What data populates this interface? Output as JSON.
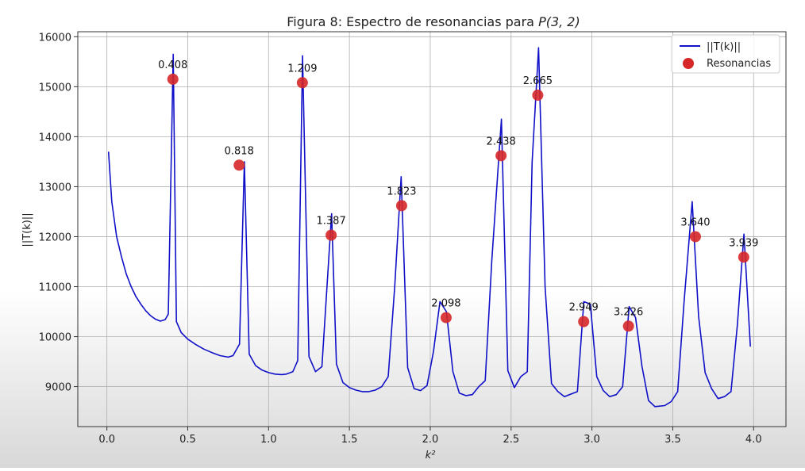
{
  "chart_data": {
    "type": "line",
    "title_prefix": "Figura 8: Espectro de resonancias para ",
    "title_math": "P(3, 2)",
    "xlabel": "k²",
    "ylabel": "||T(k)||",
    "xlim": [
      -0.18,
      4.2
    ],
    "ylim": [
      8200,
      16100
    ],
    "xticks": [
      "0.0",
      "0.5",
      "1.0",
      "1.5",
      "2.0",
      "2.5",
      "3.0",
      "3.5",
      "4.0"
    ],
    "yticks": [
      "9000",
      "10000",
      "11000",
      "12000",
      "13000",
      "14000",
      "15000",
      "16000"
    ],
    "grid": true,
    "legend_position": "top-right",
    "line_color": "#1010c8",
    "marker_color": "#d62728",
    "series": [
      {
        "name": "||T(k)||",
        "kind": "line",
        "x": [
          0.01,
          0.03,
          0.06,
          0.09,
          0.12,
          0.15,
          0.18,
          0.21,
          0.24,
          0.27,
          0.3,
          0.33,
          0.36,
          0.38,
          0.41,
          0.43,
          0.46,
          0.5,
          0.55,
          0.6,
          0.65,
          0.7,
          0.75,
          0.78,
          0.82,
          0.85,
          0.88,
          0.92,
          0.96,
          1.0,
          1.04,
          1.08,
          1.11,
          1.15,
          1.18,
          1.21,
          1.25,
          1.29,
          1.33,
          1.39,
          1.42,
          1.46,
          1.5,
          1.54,
          1.58,
          1.62,
          1.66,
          1.7,
          1.74,
          1.78,
          1.82,
          1.86,
          1.9,
          1.94,
          1.98,
          2.02,
          2.06,
          2.1,
          2.14,
          2.18,
          2.22,
          2.26,
          2.3,
          2.34,
          2.38,
          2.44,
          2.48,
          2.52,
          2.56,
          2.6,
          2.63,
          2.67,
          2.71,
          2.75,
          2.79,
          2.83,
          2.87,
          2.91,
          2.95,
          2.99,
          3.03,
          3.07,
          3.11,
          3.15,
          3.19,
          3.23,
          3.27,
          3.31,
          3.35,
          3.39,
          3.45,
          3.49,
          3.53,
          3.57,
          3.62,
          3.66,
          3.7,
          3.74,
          3.78,
          3.82,
          3.86,
          3.9,
          3.94,
          3.98
        ],
        "y": [
          13700,
          12700,
          12000,
          11600,
          11250,
          11000,
          10800,
          10650,
          10520,
          10420,
          10350,
          10310,
          10340,
          10450,
          15650,
          10300,
          10080,
          9950,
          9840,
          9750,
          9680,
          9620,
          9590,
          9620,
          9850,
          13500,
          9650,
          9420,
          9330,
          9280,
          9250,
          9240,
          9250,
          9300,
          9520,
          15620,
          9600,
          9300,
          9400,
          12460,
          9450,
          9080,
          8980,
          8930,
          8900,
          8900,
          8930,
          9000,
          9200,
          11000,
          13200,
          9380,
          8960,
          8920,
          9020,
          9700,
          10700,
          10500,
          9300,
          8870,
          8820,
          8840,
          9000,
          9120,
          11500,
          14350,
          9320,
          8980,
          9200,
          9300,
          13500,
          15780,
          11000,
          9060,
          8900,
          8800,
          8850,
          8900,
          10700,
          10650,
          9200,
          8920,
          8800,
          8840,
          9000,
          10600,
          10380,
          9400,
          8720,
          8600,
          8620,
          8700,
          8900,
          10700,
          12700,
          10400,
          9280,
          8960,
          8760,
          8800,
          8900,
          10250,
          12050,
          9800
        ]
      },
      {
        "name": "Resonancias",
        "kind": "scatter",
        "points": [
          {
            "x": 0.408,
            "y": 15150,
            "label": "0.408"
          },
          {
            "x": 0.818,
            "y": 13430,
            "label": "0.818"
          },
          {
            "x": 1.209,
            "y": 15080,
            "label": "1.209"
          },
          {
            "x": 1.387,
            "y": 12030,
            "label": "1.387"
          },
          {
            "x": 1.823,
            "y": 12620,
            "label": "1.823"
          },
          {
            "x": 2.098,
            "y": 10380,
            "label": "2.098"
          },
          {
            "x": 2.438,
            "y": 13620,
            "label": "2.438"
          },
          {
            "x": 2.665,
            "y": 14830,
            "label": "2.665"
          },
          {
            "x": 2.949,
            "y": 10300,
            "label": "2.949"
          },
          {
            "x": 3.226,
            "y": 10210,
            "label": "3.226"
          },
          {
            "x": 3.64,
            "y": 12000,
            "label": "3.640"
          },
          {
            "x": 3.939,
            "y": 11590,
            "label": "3.939"
          }
        ]
      }
    ]
  }
}
